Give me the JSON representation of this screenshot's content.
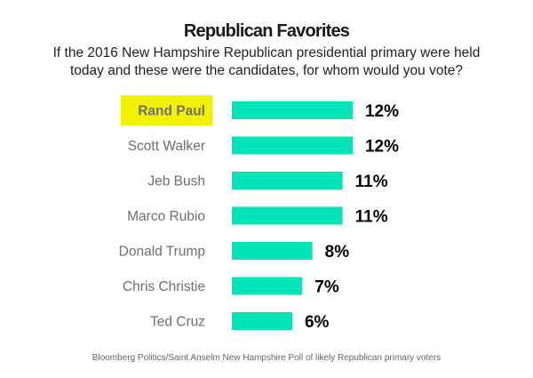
{
  "chart_data": {
    "type": "bar",
    "orientation": "horizontal",
    "title": "Republican Favorites",
    "subtitle": "If the 2016 New Hampshire Republican presidential primary were held today and these were the candidates, for whom would you vote?",
    "categories": [
      "Rand Paul",
      "Scott Walker",
      "Jeb Bush",
      "Marco Rubio",
      "Donald Trump",
      "Chris Christie",
      "Ted Cruz"
    ],
    "values": [
      12,
      12,
      11,
      11,
      8,
      7,
      6
    ],
    "value_labels": [
      "12%",
      "12%",
      "11%",
      "11%",
      "8%",
      "7%",
      "6%"
    ],
    "highlighted_category": "Rand Paul",
    "xlabel": "",
    "ylabel": "",
    "unit": "%",
    "grid": false,
    "legend": "none",
    "source": "Bloomberg Politics/Saint Anselm New Hampshire Poll of likely Republican primary voters"
  },
  "colors": {
    "bar": "#00e5b8",
    "highlight_background": "#f2f200",
    "category_text": "#6f6f6f",
    "value_text": "#000000"
  }
}
